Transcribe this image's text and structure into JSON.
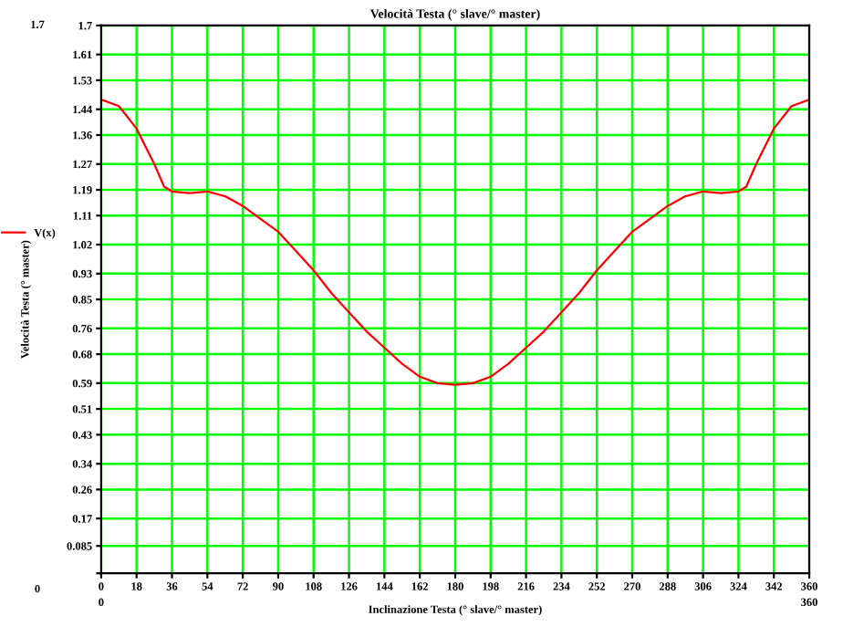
{
  "chart_data": {
    "type": "line",
    "title": "Velocità Testa (° slave/° master)",
    "xlabel": "Inclinazione Testa (° slave/° master)",
    "ylabel": "Velocità Testa (° master)",
    "x": [
      0,
      9,
      18,
      27,
      32,
      36,
      45,
      54,
      63,
      72,
      81,
      90,
      99,
      108,
      117,
      126,
      135,
      144,
      153,
      162,
      171,
      180,
      189,
      198,
      207,
      216,
      225,
      234,
      243,
      252,
      261,
      270,
      279,
      288,
      297,
      306,
      315,
      324,
      328,
      333,
      342,
      351,
      360
    ],
    "series": [
      {
        "name": "V(x)",
        "color": "#ff0000",
        "values": [
          1.47,
          1.45,
          1.38,
          1.27,
          1.2,
          1.185,
          1.18,
          1.185,
          1.17,
          1.14,
          1.1,
          1.06,
          1.0,
          0.94,
          0.87,
          0.81,
          0.75,
          0.7,
          0.65,
          0.61,
          0.59,
          0.585,
          0.59,
          0.61,
          0.65,
          0.7,
          0.75,
          0.81,
          0.87,
          0.94,
          1.0,
          1.06,
          1.1,
          1.14,
          1.17,
          1.185,
          1.18,
          1.185,
          1.2,
          1.27,
          1.38,
          1.45,
          1.47
        ]
      }
    ],
    "xlim": [
      0,
      360
    ],
    "ylim": [
      0,
      1.7
    ],
    "xticks": [
      0,
      18,
      36,
      54,
      72,
      90,
      108,
      126,
      144,
      162,
      180,
      198,
      216,
      234,
      252,
      270,
      288,
      306,
      324,
      342,
      360
    ],
    "yticks": [
      {
        "value": 0,
        "label": null
      },
      0.085,
      0.17,
      0.26,
      0.34,
      0.43,
      0.51,
      0.59,
      0.68,
      0.76,
      0.85,
      0.93,
      1.02,
      1.11,
      1.19,
      1.27,
      1.36,
      1.44,
      1.53,
      1.61,
      1.7
    ],
    "annotations": [
      "1.7",
      "0",
      "0",
      "360"
    ],
    "grid": true,
    "legend": "left",
    "marker": "none",
    "line_style": "solid"
  }
}
